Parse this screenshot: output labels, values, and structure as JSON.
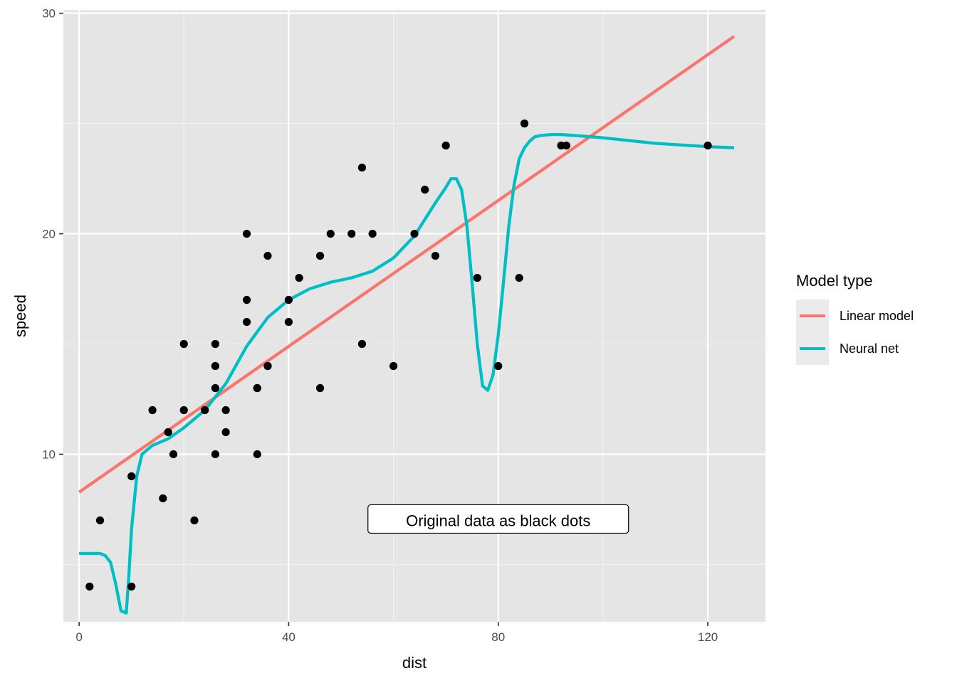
{
  "chart_data": {
    "type": "scatter",
    "xlabel": "dist",
    "ylabel": "speed",
    "xlim": [
      -3,
      131
    ],
    "ylim": [
      2.4,
      30.15
    ],
    "x_ticks": [
      0,
      40,
      80,
      120
    ],
    "y_ticks": [
      10,
      20,
      30
    ],
    "x_minor": [
      20,
      60,
      100
    ],
    "y_minor": [
      5,
      15,
      25
    ],
    "grid": true,
    "background": "#E5E5E5",
    "legend": {
      "title": "Model type",
      "position": "right",
      "entries": [
        {
          "label": "Linear model",
          "color": "#F8766D"
        },
        {
          "label": "Neural net",
          "color": "#00BFC4"
        }
      ]
    },
    "annotation": {
      "text": "Original data as black dots",
      "x": 80,
      "y": 7
    },
    "points": {
      "color": "#000000",
      "x": [
        2,
        10,
        4,
        22,
        16,
        10,
        18,
        26,
        34,
        17,
        28,
        14,
        20,
        24,
        28,
        26,
        34,
        34,
        46,
        26,
        36,
        60,
        80,
        20,
        26,
        54,
        32,
        40,
        32,
        40,
        42,
        36,
        76,
        84,
        36,
        46,
        68,
        32,
        48,
        52,
        56,
        64,
        66,
        54,
        70,
        92,
        93,
        120,
        85
      ],
      "y": [
        4,
        4,
        7,
        7,
        8,
        9,
        10,
        10,
        10,
        11,
        11,
        12,
        12,
        12,
        12,
        13,
        13,
        13,
        13,
        14,
        14,
        14,
        14,
        15,
        15,
        15,
        16,
        16,
        17,
        17,
        18,
        19,
        18,
        18,
        14,
        19,
        19,
        20,
        20,
        20,
        20,
        20,
        22,
        23,
        24,
        24,
        24,
        24,
        25
      ]
    },
    "series": [
      {
        "name": "Linear model",
        "color": "#F8766D",
        "x": [
          0,
          125
        ],
        "y": [
          8.28,
          28.95
        ]
      },
      {
        "name": "Neural net",
        "color": "#00BFC4",
        "x": [
          0,
          2,
          4,
          5,
          6,
          7,
          8,
          9,
          9.5,
          10,
          11,
          12,
          14,
          17,
          20,
          24,
          28,
          32,
          36,
          40,
          44,
          48,
          52,
          56,
          60,
          64,
          68,
          70,
          71,
          72,
          73,
          74,
          75,
          76,
          77,
          78,
          79,
          80,
          81,
          82,
          83,
          84,
          85,
          86,
          87,
          88,
          90,
          92,
          95,
          100,
          110,
          120,
          125
        ],
        "y": [
          5.5,
          5.5,
          5.5,
          5.4,
          5.1,
          4.1,
          2.9,
          2.8,
          4.5,
          6.6,
          9.0,
          10.0,
          10.4,
          10.7,
          11.2,
          12.0,
          13.2,
          14.9,
          16.2,
          17.0,
          17.5,
          17.8,
          18.0,
          18.3,
          18.9,
          19.9,
          21.4,
          22.1,
          22.5,
          22.5,
          22.0,
          20.4,
          17.8,
          15.0,
          13.1,
          12.9,
          13.6,
          15.4,
          17.8,
          20.3,
          22.2,
          23.4,
          23.9,
          24.2,
          24.4,
          24.45,
          24.5,
          24.5,
          24.45,
          24.35,
          24.1,
          23.95,
          23.9
        ]
      }
    ]
  }
}
